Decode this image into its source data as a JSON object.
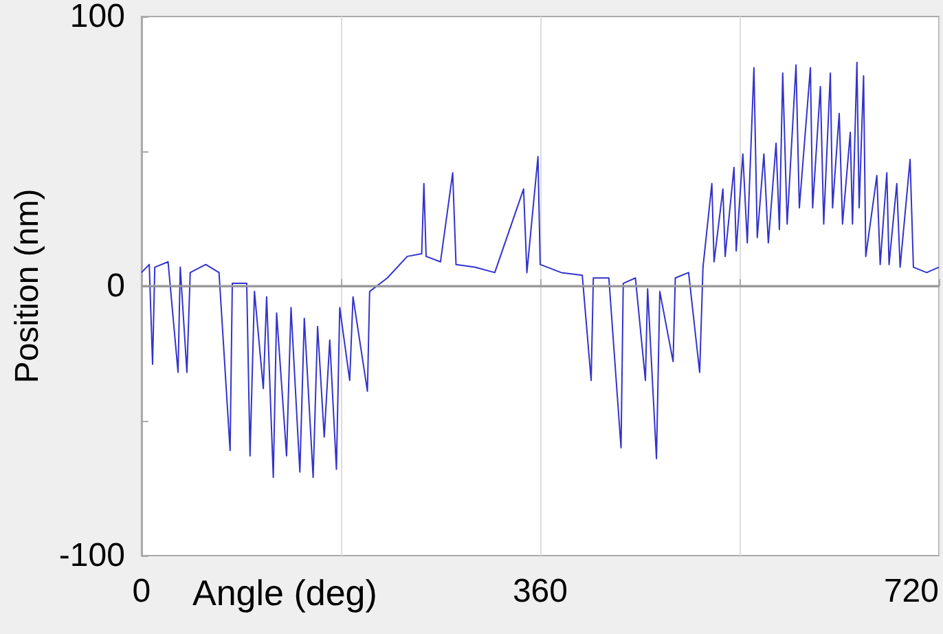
{
  "chart_data": {
    "type": "line",
    "xlabel": "Angle (deg)",
    "ylabel": "Position (nm)",
    "xlim": [
      0,
      720
    ],
    "xticks": [
      0,
      {
        "value": 180,
        "label": null
      },
      360,
      {
        "value": 540,
        "label": null
      },
      720
    ],
    "ylim": [
      -100,
      100
    ],
    "yticks": [
      100,
      {
        "value": 50,
        "label": null
      },
      0,
      {
        "value": -50,
        "label": null
      },
      -100
    ],
    "grid": "x",
    "marker": "none",
    "line_style": "solid",
    "ref_lines": [
      {
        "axis": "y",
        "value": 0,
        "label": null,
        "color": "#999999"
      }
    ],
    "series": [
      {
        "color": "#3333cc",
        "x": [
          0,
          7,
          10,
          12,
          24,
          33,
          35,
          41,
          44,
          58,
          70,
          80,
          82,
          95,
          98,
          102,
          110,
          113,
          119,
          122,
          131,
          135,
          143,
          147,
          155,
          159,
          165,
          170,
          176,
          179,
          188,
          191,
          204,
          206,
          222,
          240,
          253,
          255,
          257,
          270,
          281,
          284,
          301,
          319,
          345,
          348,
          358,
          360,
          379,
          398,
          406,
          408,
          422,
          433,
          435,
          446,
          455,
          457,
          465,
          468,
          480,
          482,
          494,
          504,
          507,
          515,
          517,
          525,
          527,
          535,
          537,
          543,
          547,
          553,
          556,
          562,
          566,
          573,
          576,
          579,
          583,
          591,
          594,
          604,
          606,
          613,
          616,
          622,
          624,
          630,
          633,
          640,
          642,
          646,
          648,
          652,
          654,
          664,
          667,
          673,
          675,
          682,
          685,
          694,
          697,
          709,
          720
        ],
        "values": [
          5,
          8,
          -29,
          7,
          9,
          -32,
          7,
          -32,
          5,
          8,
          5,
          -61,
          1,
          1,
          -63,
          -2,
          -38,
          -4,
          -71,
          -10,
          -63,
          -8,
          -69,
          -12,
          -71,
          -15,
          -56,
          -20,
          -68,
          -8,
          -35,
          -4,
          -39,
          -2,
          3,
          11,
          12,
          38,
          11,
          9,
          42,
          8,
          7,
          5,
          36,
          5,
          48,
          8,
          5,
          4,
          -35,
          3,
          3,
          -60,
          1,
          3,
          -35,
          -1,
          -64,
          -2,
          -28,
          3,
          5,
          -32,
          7,
          38,
          9,
          36,
          11,
          44,
          13,
          49,
          16,
          81,
          18,
          49,
          16,
          53,
          21,
          79,
          23,
          82,
          29,
          81,
          29,
          74,
          23,
          79,
          29,
          64,
          23,
          57,
          23,
          83,
          29,
          78,
          11,
          41,
          8,
          42,
          8,
          38,
          7,
          47,
          7,
          5,
          7
        ]
      }
    ]
  }
}
